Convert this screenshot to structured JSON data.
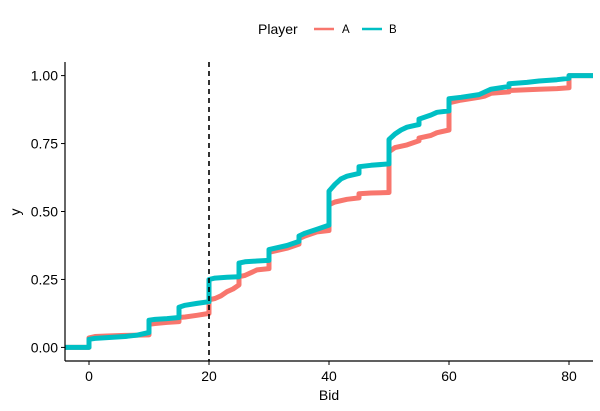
{
  "chart_data": {
    "type": "line",
    "step": true,
    "xlabel": "Bid",
    "ylabel": "y",
    "xlim": [
      -4,
      84
    ],
    "ylim": [
      -0.05,
      1.05
    ],
    "x_ticks": [
      0,
      20,
      40,
      60,
      80
    ],
    "y_ticks": [
      0,
      0.25,
      0.5,
      0.75,
      1
    ],
    "x_tick_labels": [
      "0",
      "20",
      "40",
      "60",
      "80"
    ],
    "y_tick_labels": [
      "0.00",
      "0.25",
      "0.50",
      "0.75",
      "1.00"
    ],
    "grid": false,
    "legend": {
      "title": "Player",
      "position": "top"
    },
    "vline": {
      "x": 20,
      "style": "dashed",
      "color": "#000000"
    },
    "series": [
      {
        "name": "A",
        "color": "#F8766D",
        "points": [
          [
            -4,
            0.0
          ],
          [
            0,
            0.0
          ],
          [
            0,
            0.035
          ],
          [
            1,
            0.04
          ],
          [
            3,
            0.042
          ],
          [
            6,
            0.044
          ],
          [
            10,
            0.046
          ],
          [
            10,
            0.085
          ],
          [
            11,
            0.088
          ],
          [
            13,
            0.092
          ],
          [
            15,
            0.095
          ],
          [
            15,
            0.11
          ],
          [
            16,
            0.112
          ],
          [
            18,
            0.118
          ],
          [
            20,
            0.125
          ],
          [
            20,
            0.175
          ],
          [
            21,
            0.18
          ],
          [
            22,
            0.19
          ],
          [
            23,
            0.205
          ],
          [
            24,
            0.215
          ],
          [
            25,
            0.23
          ],
          [
            25,
            0.26
          ],
          [
            26,
            0.265
          ],
          [
            27,
            0.275
          ],
          [
            28,
            0.285
          ],
          [
            30,
            0.29
          ],
          [
            30,
            0.35
          ],
          [
            31,
            0.355
          ],
          [
            33,
            0.365
          ],
          [
            35,
            0.38
          ],
          [
            35,
            0.4
          ],
          [
            36,
            0.41
          ],
          [
            38,
            0.425
          ],
          [
            40,
            0.43
          ],
          [
            40,
            0.525
          ],
          [
            41,
            0.535
          ],
          [
            43,
            0.545
          ],
          [
            45,
            0.55
          ],
          [
            45,
            0.565
          ],
          [
            47,
            0.568
          ],
          [
            50,
            0.57
          ],
          [
            50,
            0.72
          ],
          [
            51,
            0.735
          ],
          [
            53,
            0.745
          ],
          [
            55,
            0.76
          ],
          [
            55,
            0.77
          ],
          [
            57,
            0.78
          ],
          [
            58,
            0.79
          ],
          [
            60,
            0.8
          ],
          [
            60,
            0.9
          ],
          [
            62,
            0.91
          ],
          [
            65,
            0.92
          ],
          [
            66,
            0.925
          ],
          [
            67,
            0.935
          ],
          [
            70,
            0.94
          ],
          [
            70,
            0.945
          ],
          [
            73,
            0.948
          ],
          [
            75,
            0.95
          ],
          [
            78,
            0.952
          ],
          [
            80,
            0.955
          ],
          [
            80,
            1.0
          ],
          [
            84,
            1.0
          ]
        ]
      },
      {
        "name": "B",
        "color": "#00BFC4",
        "points": [
          [
            -4,
            0.0
          ],
          [
            0,
            0.0
          ],
          [
            0,
            0.03
          ],
          [
            1,
            0.033
          ],
          [
            3,
            0.036
          ],
          [
            6,
            0.04
          ],
          [
            8,
            0.045
          ],
          [
            10,
            0.055
          ],
          [
            10,
            0.1
          ],
          [
            11,
            0.103
          ],
          [
            13,
            0.106
          ],
          [
            15,
            0.11
          ],
          [
            15,
            0.148
          ],
          [
            16,
            0.155
          ],
          [
            18,
            0.162
          ],
          [
            20,
            0.168
          ],
          [
            20,
            0.25
          ],
          [
            21,
            0.255
          ],
          [
            23,
            0.258
          ],
          [
            25,
            0.26
          ],
          [
            25,
            0.31
          ],
          [
            26,
            0.315
          ],
          [
            28,
            0.318
          ],
          [
            30,
            0.32
          ],
          [
            30,
            0.36
          ],
          [
            31,
            0.365
          ],
          [
            33,
            0.375
          ],
          [
            35,
            0.39
          ],
          [
            35,
            0.41
          ],
          [
            36,
            0.42
          ],
          [
            38,
            0.435
          ],
          [
            40,
            0.45
          ],
          [
            40,
            0.575
          ],
          [
            41,
            0.6
          ],
          [
            42,
            0.62
          ],
          [
            43,
            0.63
          ],
          [
            45,
            0.64
          ],
          [
            45,
            0.665
          ],
          [
            47,
            0.67
          ],
          [
            50,
            0.675
          ],
          [
            50,
            0.765
          ],
          [
            51,
            0.785
          ],
          [
            52,
            0.8
          ],
          [
            53,
            0.81
          ],
          [
            55,
            0.82
          ],
          [
            55,
            0.84
          ],
          [
            57,
            0.855
          ],
          [
            58,
            0.865
          ],
          [
            60,
            0.87
          ],
          [
            60,
            0.915
          ],
          [
            62,
            0.92
          ],
          [
            65,
            0.93
          ],
          [
            66,
            0.94
          ],
          [
            67,
            0.95
          ],
          [
            70,
            0.96
          ],
          [
            70,
            0.97
          ],
          [
            73,
            0.975
          ],
          [
            75,
            0.98
          ],
          [
            78,
            0.985
          ],
          [
            80,
            0.99
          ],
          [
            80,
            1.0
          ],
          [
            84,
            1.0
          ]
        ]
      }
    ]
  }
}
